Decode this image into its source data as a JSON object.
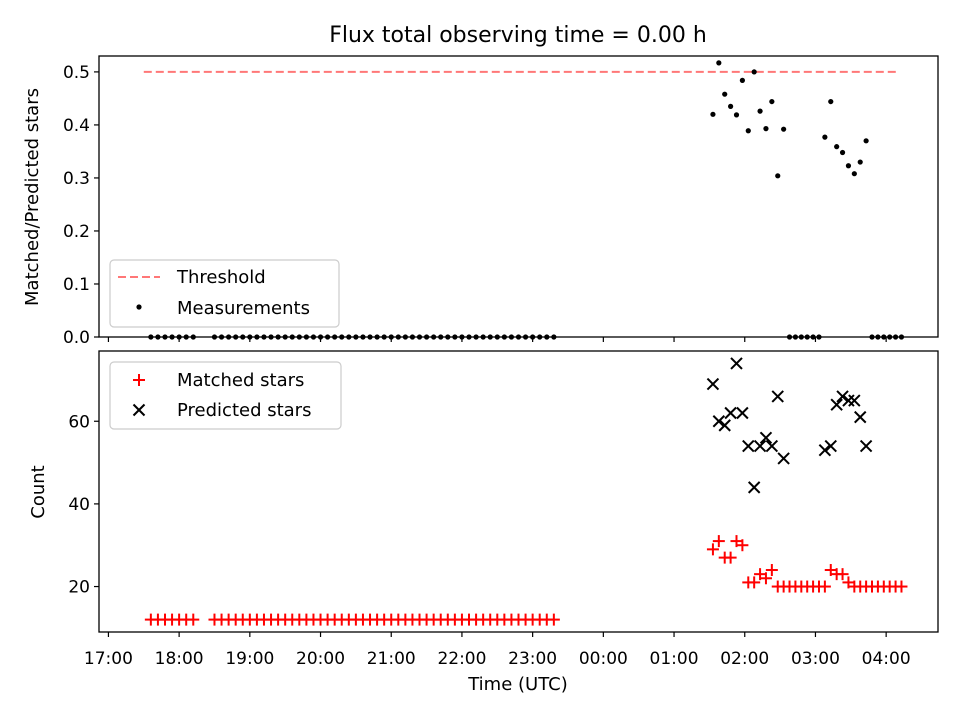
{
  "chart_data": [
    {
      "type": "scatter",
      "title": "Flux total observing time = 0.00 h",
      "xlabel": "",
      "ylabel": "Matched/Predicted stars",
      "x_unit": "time of day (UTC), spanning midnight",
      "xlim": [
        "16:52",
        "04:44"
      ],
      "ylim": [
        0,
        0.53
      ],
      "yticks": [
        "0.0",
        "0.1",
        "0.2",
        "0.3",
        "0.4",
        "0.5"
      ],
      "grid": false,
      "legend_position": "lower-left",
      "threshold": {
        "name": "Threshold",
        "value": 0.5,
        "x_range": [
          "17:30",
          "04:10"
        ],
        "color": "#ff7777",
        "style": "dashed"
      },
      "series": [
        {
          "name": "Measurements",
          "color": "#000000",
          "marker": "dot",
          "points": [
            [
              "17:36",
              0
            ],
            [
              "17:42",
              0
            ],
            [
              "17:48",
              0
            ],
            [
              "17:54",
              0
            ],
            [
              "18:00",
              0
            ],
            [
              "18:06",
              0
            ],
            [
              "18:12",
              0
            ],
            [
              "18:30",
              0
            ],
            [
              "18:36",
              0
            ],
            [
              "18:42",
              0
            ],
            [
              "18:48",
              0
            ],
            [
              "18:54",
              0
            ],
            [
              "19:00",
              0
            ],
            [
              "19:06",
              0
            ],
            [
              "19:12",
              0
            ],
            [
              "19:18",
              0
            ],
            [
              "19:24",
              0
            ],
            [
              "19:30",
              0
            ],
            [
              "19:36",
              0
            ],
            [
              "19:42",
              0
            ],
            [
              "19:48",
              0
            ],
            [
              "19:54",
              0
            ],
            [
              "20:00",
              0
            ],
            [
              "20:06",
              0
            ],
            [
              "20:12",
              0
            ],
            [
              "20:18",
              0
            ],
            [
              "20:24",
              0
            ],
            [
              "20:30",
              0
            ],
            [
              "20:36",
              0
            ],
            [
              "20:42",
              0
            ],
            [
              "20:48",
              0
            ],
            [
              "20:54",
              0
            ],
            [
              "21:00",
              0
            ],
            [
              "21:06",
              0
            ],
            [
              "21:12",
              0
            ],
            [
              "21:18",
              0
            ],
            [
              "21:24",
              0
            ],
            [
              "21:30",
              0
            ],
            [
              "21:36",
              0
            ],
            [
              "21:42",
              0
            ],
            [
              "21:48",
              0
            ],
            [
              "21:54",
              0
            ],
            [
              "22:00",
              0
            ],
            [
              "22:06",
              0
            ],
            [
              "22:12",
              0
            ],
            [
              "22:18",
              0
            ],
            [
              "22:24",
              0
            ],
            [
              "22:30",
              0
            ],
            [
              "22:36",
              0
            ],
            [
              "22:42",
              0
            ],
            [
              "22:48",
              0
            ],
            [
              "22:54",
              0
            ],
            [
              "23:00",
              0
            ],
            [
              "23:06",
              0
            ],
            [
              "23:12",
              0
            ],
            [
              "23:18",
              0
            ],
            [
              "01:33",
              0.42
            ],
            [
              "01:38",
              0.517
            ],
            [
              "01:43",
              0.458
            ],
            [
              "01:48",
              0.435
            ],
            [
              "01:53",
              0.419
            ],
            [
              "01:58",
              0.484
            ],
            [
              "02:03",
              0.389
            ],
            [
              "02:08",
              0.5
            ],
            [
              "02:13",
              0.426
            ],
            [
              "02:18",
              0.393
            ],
            [
              "02:23",
              0.444
            ],
            [
              "02:28",
              0.304
            ],
            [
              "02:33",
              0.392
            ],
            [
              "02:38",
              0
            ],
            [
              "02:43",
              0
            ],
            [
              "02:48",
              0
            ],
            [
              "02:53",
              0
            ],
            [
              "02:58",
              0
            ],
            [
              "03:03",
              0
            ],
            [
              "03:08",
              0.377
            ],
            [
              "03:13",
              0.444
            ],
            [
              "03:18",
              0.359
            ],
            [
              "03:23",
              0.348
            ],
            [
              "03:28",
              0.323
            ],
            [
              "03:33",
              0.308
            ],
            [
              "03:38",
              0.33
            ],
            [
              "03:43",
              0.37
            ],
            [
              "03:48",
              0
            ],
            [
              "03:53",
              0
            ],
            [
              "03:58",
              0
            ],
            [
              "04:03",
              0
            ],
            [
              "04:08",
              0
            ],
            [
              "04:13",
              0
            ]
          ]
        }
      ]
    },
    {
      "type": "scatter",
      "title": "",
      "xlabel": "Time (UTC)",
      "ylabel": "Count",
      "x_unit": "time of day (UTC), spanning midnight",
      "xlim": [
        "16:52",
        "04:44"
      ],
      "xticks": [
        "17:00",
        "18:00",
        "19:00",
        "20:00",
        "21:00",
        "22:00",
        "23:00",
        "00:00",
        "01:00",
        "02:00",
        "03:00",
        "04:00"
      ],
      "ylim": [
        9,
        77
      ],
      "yticks": [
        "20",
        "40",
        "60"
      ],
      "grid": false,
      "legend_position": "upper-left",
      "series": [
        {
          "name": "Matched stars",
          "color": "#ff0000",
          "marker": "plus",
          "points": [
            [
              "17:36",
              12
            ],
            [
              "17:42",
              12
            ],
            [
              "17:48",
              12
            ],
            [
              "17:54",
              12
            ],
            [
              "18:00",
              12
            ],
            [
              "18:06",
              12
            ],
            [
              "18:12",
              12
            ],
            [
              "18:30",
              12
            ],
            [
              "18:36",
              12
            ],
            [
              "18:42",
              12
            ],
            [
              "18:48",
              12
            ],
            [
              "18:54",
              12
            ],
            [
              "19:00",
              12
            ],
            [
              "19:06",
              12
            ],
            [
              "19:12",
              12
            ],
            [
              "19:18",
              12
            ],
            [
              "19:24",
              12
            ],
            [
              "19:30",
              12
            ],
            [
              "19:36",
              12
            ],
            [
              "19:42",
              12
            ],
            [
              "19:48",
              12
            ],
            [
              "19:54",
              12
            ],
            [
              "20:00",
              12
            ],
            [
              "20:06",
              12
            ],
            [
              "20:12",
              12
            ],
            [
              "20:18",
              12
            ],
            [
              "20:24",
              12
            ],
            [
              "20:30",
              12
            ],
            [
              "20:36",
              12
            ],
            [
              "20:42",
              12
            ],
            [
              "20:48",
              12
            ],
            [
              "20:54",
              12
            ],
            [
              "21:00",
              12
            ],
            [
              "21:06",
              12
            ],
            [
              "21:12",
              12
            ],
            [
              "21:18",
              12
            ],
            [
              "21:24",
              12
            ],
            [
              "21:30",
              12
            ],
            [
              "21:36",
              12
            ],
            [
              "21:42",
              12
            ],
            [
              "21:48",
              12
            ],
            [
              "21:54",
              12
            ],
            [
              "22:00",
              12
            ],
            [
              "22:06",
              12
            ],
            [
              "22:12",
              12
            ],
            [
              "22:18",
              12
            ],
            [
              "22:24",
              12
            ],
            [
              "22:30",
              12
            ],
            [
              "22:36",
              12
            ],
            [
              "22:42",
              12
            ],
            [
              "22:48",
              12
            ],
            [
              "22:54",
              12
            ],
            [
              "23:00",
              12
            ],
            [
              "23:06",
              12
            ],
            [
              "23:12",
              12
            ],
            [
              "23:18",
              12
            ],
            [
              "01:33",
              29
            ],
            [
              "01:38",
              31
            ],
            [
              "01:43",
              27
            ],
            [
              "01:48",
              27
            ],
            [
              "01:53",
              31
            ],
            [
              "01:58",
              30
            ],
            [
              "02:03",
              21
            ],
            [
              "02:08",
              21
            ],
            [
              "02:13",
              23
            ],
            [
              "02:18",
              22
            ],
            [
              "02:23",
              24
            ],
            [
              "02:28",
              20
            ],
            [
              "02:33",
              20
            ],
            [
              "02:38",
              20
            ],
            [
              "02:43",
              20
            ],
            [
              "02:48",
              20
            ],
            [
              "02:53",
              20
            ],
            [
              "02:58",
              20
            ],
            [
              "03:03",
              20
            ],
            [
              "03:08",
              20
            ],
            [
              "03:13",
              24
            ],
            [
              "03:18",
              23
            ],
            [
              "03:23",
              23
            ],
            [
              "03:28",
              21
            ],
            [
              "03:33",
              20
            ],
            [
              "03:38",
              20
            ],
            [
              "03:43",
              20
            ],
            [
              "03:48",
              20
            ],
            [
              "03:53",
              20
            ],
            [
              "03:58",
              20
            ],
            [
              "04:03",
              20
            ],
            [
              "04:08",
              20
            ],
            [
              "04:13",
              20
            ]
          ]
        },
        {
          "name": "Predicted stars",
          "color": "#000000",
          "marker": "x",
          "points": [
            [
              "01:33",
              69
            ],
            [
              "01:38",
              60
            ],
            [
              "01:43",
              59
            ],
            [
              "01:48",
              62
            ],
            [
              "01:53",
              74
            ],
            [
              "01:58",
              62
            ],
            [
              "02:03",
              54
            ],
            [
              "02:08",
              44
            ],
            [
              "02:13",
              54
            ],
            [
              "02:18",
              56
            ],
            [
              "02:23",
              54
            ],
            [
              "02:28",
              66
            ],
            [
              "02:33",
              51
            ],
            [
              "03:08",
              53
            ],
            [
              "03:13",
              54
            ],
            [
              "03:18",
              64
            ],
            [
              "03:23",
              66
            ],
            [
              "03:28",
              65
            ],
            [
              "03:33",
              65
            ],
            [
              "03:38",
              61
            ],
            [
              "03:43",
              54
            ]
          ]
        }
      ]
    }
  ]
}
